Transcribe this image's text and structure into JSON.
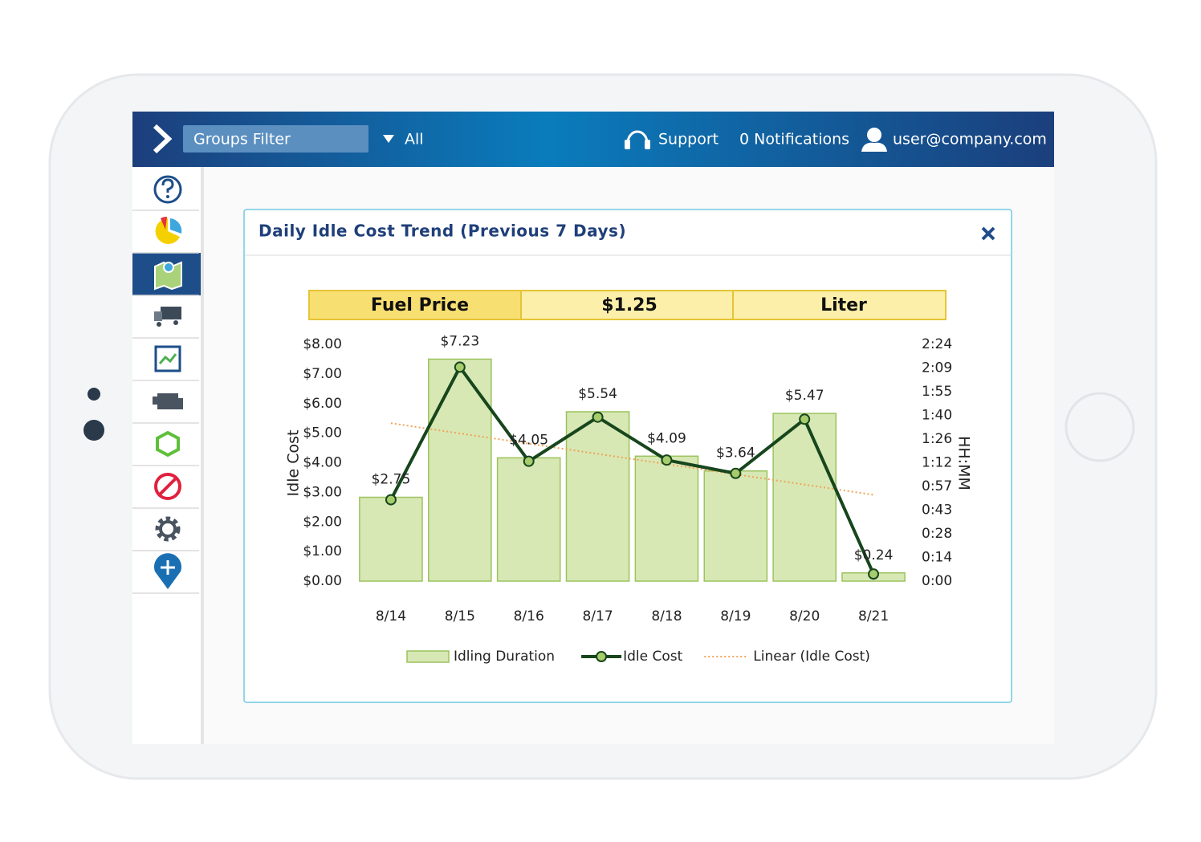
{
  "header": {
    "groups_filter": "Groups Filter",
    "filter_value": "All",
    "support": "Support",
    "notifications": "0 Notifications",
    "user": "user@company.com"
  },
  "panel": {
    "title": "Daily Idle Cost Trend (Previous 7 Days)"
  },
  "fuel_table": {
    "cells": [
      "Fuel Price",
      "$1.25",
      "Liter"
    ]
  },
  "chart_data": {
    "type": "combo",
    "categories": [
      "8/14",
      "8/15",
      "8/16",
      "8/17",
      "8/18",
      "8/19",
      "8/20",
      "8/21"
    ],
    "ylabel": "Idle Cost",
    "y2label": "HH:MM",
    "ylim": [
      0,
      8
    ],
    "yticks": [
      {
        "value": 0,
        "label": "$0.00"
      },
      {
        "value": 1,
        "label": "$1.00"
      },
      {
        "value": 2,
        "label": "$2.00"
      },
      {
        "value": 3,
        "label": "$3.00"
      },
      {
        "value": 4,
        "label": "$4.00"
      },
      {
        "value": 5,
        "label": "$5.00"
      },
      {
        "value": 6,
        "label": "$6.00"
      },
      {
        "value": 7,
        "label": "$7.00"
      },
      {
        "value": 8,
        "label": "$8.00"
      }
    ],
    "y2lim": [
      0,
      144
    ],
    "y2ticks": [
      {
        "value": 0,
        "label": "0:00"
      },
      {
        "value": 14.4,
        "label": "0:14"
      },
      {
        "value": 28.8,
        "label": "0:28"
      },
      {
        "value": 43.2,
        "label": "0:43"
      },
      {
        "value": 57.6,
        "label": "0:57"
      },
      {
        "value": 72,
        "label": "1:12"
      },
      {
        "value": 86.4,
        "label": "1:26"
      },
      {
        "value": 100.8,
        "label": "1:40"
      },
      {
        "value": 115.2,
        "label": "1:55"
      },
      {
        "value": 129.6,
        "label": "2:09"
      },
      {
        "value": 144,
        "label": "2:24"
      }
    ],
    "series": [
      {
        "name": "Idling Duration",
        "type": "bar",
        "axis": "y2",
        "color": "#d7e8b4",
        "values": [
          51,
          135,
          75,
          103,
          76,
          67,
          102,
          5
        ]
      },
      {
        "name": "Idle Cost",
        "type": "line",
        "color": "#17461d",
        "values": [
          2.75,
          7.23,
          4.05,
          5.54,
          4.09,
          3.64,
          5.47,
          0.24
        ],
        "value_labels": [
          "$2.75",
          "$7.23",
          "$4.05",
          "$5.54",
          "$4.09",
          "$3.64",
          "$5.47",
          "$0.24"
        ]
      }
    ],
    "trendline": {
      "name": "Linear (Idle Cost)",
      "of": 1,
      "color": "#f0a35a"
    }
  }
}
